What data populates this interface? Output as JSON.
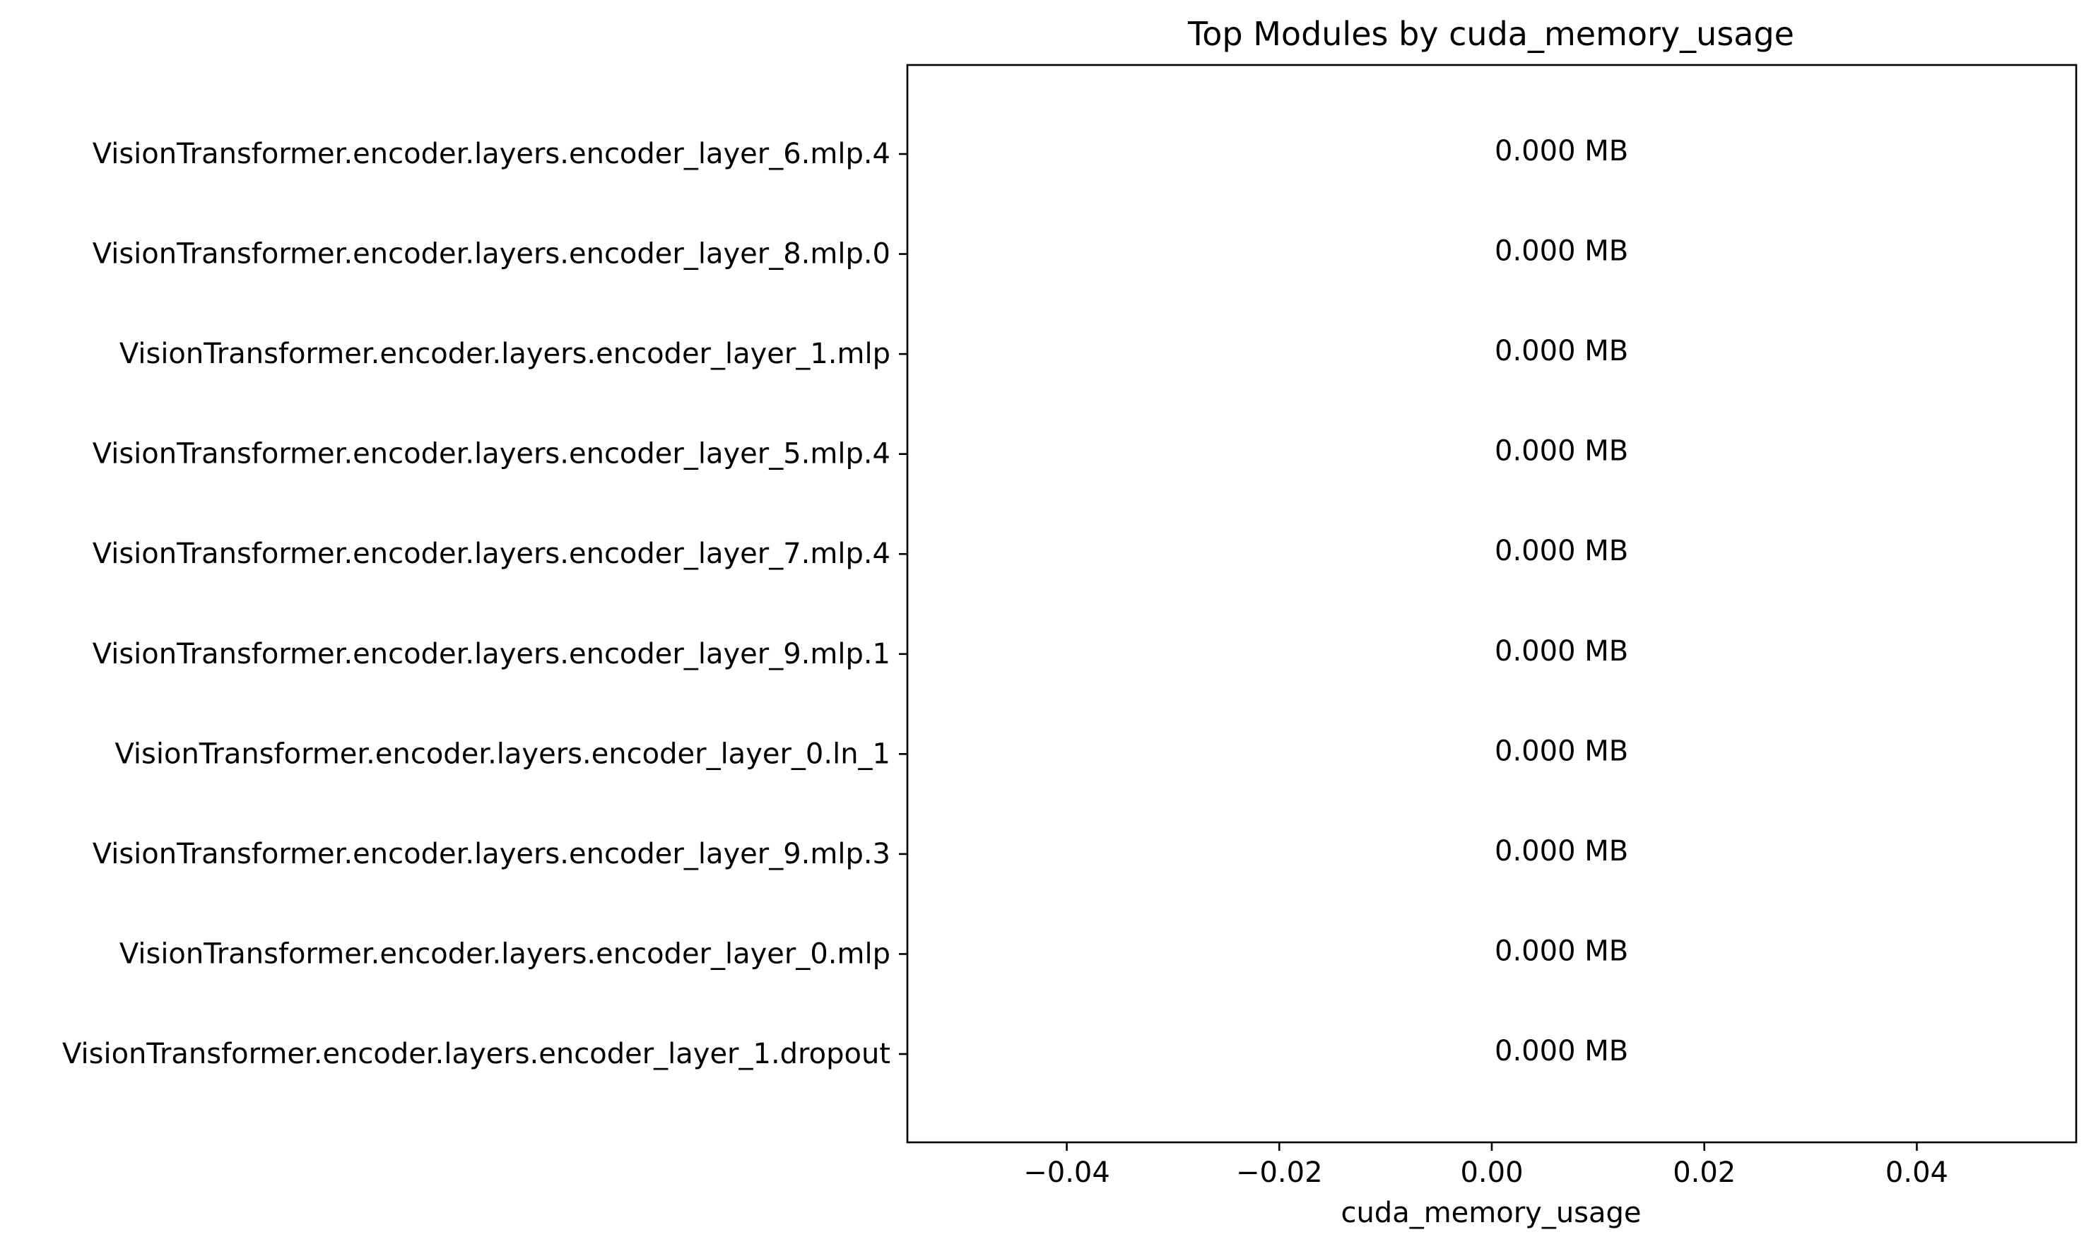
{
  "chart_data": {
    "type": "bar",
    "orientation": "horizontal",
    "title": "Top Modules by cuda_memory_usage",
    "xlabel": "cuda_memory_usage",
    "ylabel": "",
    "xlim": [
      -0.055,
      0.055
    ],
    "xticks": [
      -0.04,
      -0.02,
      0.0,
      0.02,
      0.04
    ],
    "xtick_labels": [
      "−0.04",
      "−0.02",
      "0.00",
      "0.02",
      "0.04"
    ],
    "grid": false,
    "categories": [
      "VisionTransformer.encoder.layers.encoder_layer_6.mlp.4",
      "VisionTransformer.encoder.layers.encoder_layer_8.mlp.0",
      "VisionTransformer.encoder.layers.encoder_layer_1.mlp",
      "VisionTransformer.encoder.layers.encoder_layer_5.mlp.4",
      "VisionTransformer.encoder.layers.encoder_layer_7.mlp.4",
      "VisionTransformer.encoder.layers.encoder_layer_9.mlp.1",
      "VisionTransformer.encoder.layers.encoder_layer_0.ln_1",
      "VisionTransformer.encoder.layers.encoder_layer_9.mlp.3",
      "VisionTransformer.encoder.layers.encoder_layer_0.mlp",
      "VisionTransformer.encoder.layers.encoder_layer_1.dropout"
    ],
    "values": [
      0,
      0,
      0,
      0,
      0,
      0,
      0,
      0,
      0,
      0
    ],
    "data_labels": [
      "0.000 MB",
      "0.000 MB",
      "0.000 MB",
      "0.000 MB",
      "0.000 MB",
      "0.000 MB",
      "0.000 MB",
      "0.000 MB",
      "0.000 MB",
      "0.000 MB"
    ],
    "colors": {
      "bar": "#1f77b4",
      "axis": "#000000",
      "text": "#000000",
      "background": "#ffffff"
    }
  }
}
